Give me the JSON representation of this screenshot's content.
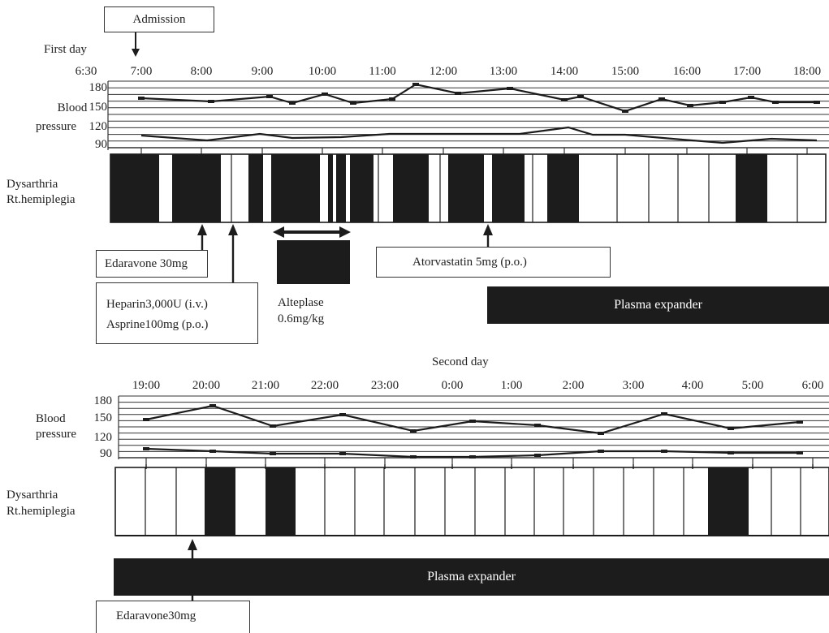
{
  "admission_label": "Admission",
  "first_day_label": "First day",
  "second_day_label": "Second day",
  "bp_label": [
    "Blood",
    "pressure"
  ],
  "symptom_label": [
    "Dysarthria",
    "Rt.hemiplegia"
  ],
  "bp_ticks": [
    "180",
    "150",
    "120",
    "90"
  ],
  "day1": {
    "start_time": "6:30",
    "times": [
      "7:00",
      "8:00",
      "9:00",
      "10:00",
      "11:00",
      "12:00",
      "13:00",
      "14:00",
      "15:00",
      "16:00",
      "17:00",
      "18:00"
    ],
    "interventions": {
      "edaravone": "Edaravone 30mg",
      "heparin": "Heparin3,000U (i.v.)",
      "aspirin": "Asprine100mg (p.o.)",
      "alteplase": [
        "Alteplase",
        "0.6mg/kg"
      ],
      "atorvastatin": "Atorvastatin 5mg (p.o.)",
      "plasma": "Plasma expander"
    }
  },
  "day2": {
    "times": [
      "19:00",
      "20:00",
      "21:00",
      "22:00",
      "23:00",
      "0:00",
      "1:00",
      "2:00",
      "3:00",
      "4:00",
      "5:00",
      "6:00"
    ],
    "interventions": {
      "plasma": "Plasma expander",
      "edaravone": "Edaravone30mg"
    }
  },
  "colors": {
    "ink": "#1c1c1c",
    "line": "#333333",
    "bg": "#ffffff"
  }
}
